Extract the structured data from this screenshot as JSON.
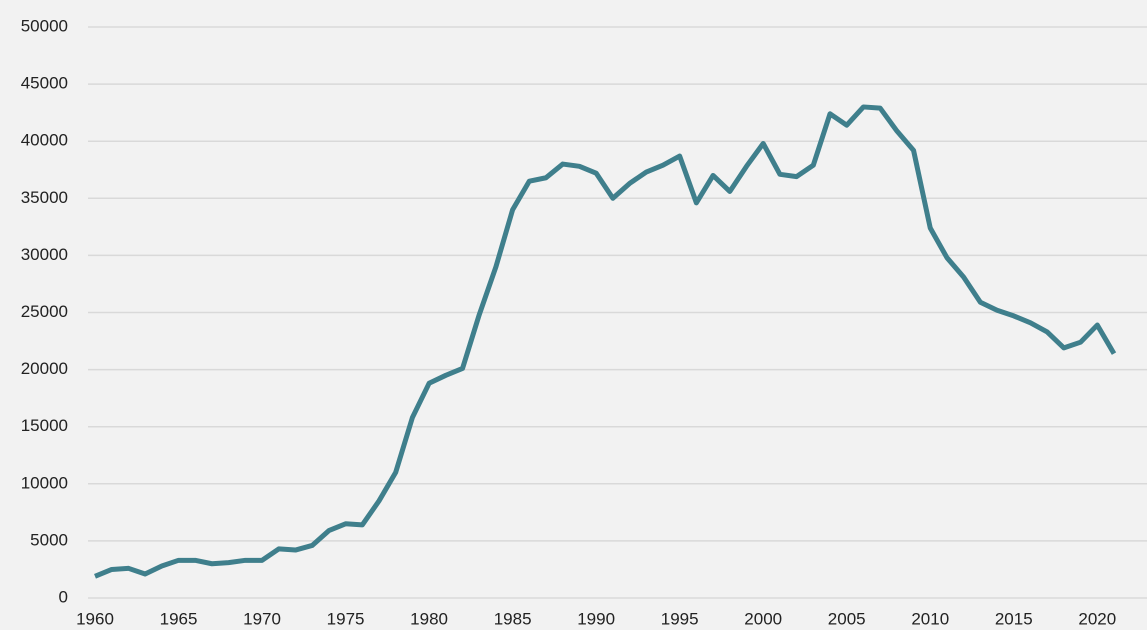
{
  "chart_data": {
    "type": "line",
    "x": [
      1960,
      1961,
      1962,
      1963,
      1964,
      1965,
      1966,
      1967,
      1968,
      1969,
      1970,
      1971,
      1972,
      1973,
      1974,
      1975,
      1976,
      1977,
      1978,
      1979,
      1980,
      1981,
      1982,
      1983,
      1984,
      1985,
      1986,
      1987,
      1988,
      1989,
      1990,
      1991,
      1992,
      1993,
      1994,
      1995,
      1996,
      1997,
      1998,
      1999,
      2000,
      2001,
      2002,
      2003,
      2004,
      2005,
      2006,
      2007,
      2008,
      2009,
      2010,
      2011,
      2012,
      2013,
      2014,
      2015,
      2016,
      2017,
      2018,
      2019,
      2020,
      2021
    ],
    "series": [
      {
        "color": "#3f7f8c",
        "values": [
          1900,
          2500,
          2600,
          2100,
          2800,
          3300,
          3300,
          3000,
          3100,
          3300,
          3300,
          4300,
          4200,
          4600,
          5900,
          6500,
          6400,
          8500,
          11000,
          15800,
          18800,
          19500,
          20100,
          24800,
          29000,
          34000,
          36500,
          36800,
          38000,
          37800,
          37200,
          35000,
          36300,
          37300,
          37900,
          38700,
          34600,
          37000,
          35600,
          37800,
          39800,
          37100,
          36900,
          37900,
          42400,
          41400,
          43000,
          42900,
          40900,
          39200,
          32400,
          29800,
          28100,
          25900,
          25200,
          24700,
          24100,
          23300,
          21900,
          22400,
          23900,
          21400
        ]
      }
    ],
    "xlim": [
      1960,
      2021
    ],
    "xticks": [
      1960,
      1965,
      1970,
      1975,
      1980,
      1985,
      1990,
      1995,
      2000,
      2005,
      2010,
      2015,
      2020
    ],
    "ylim": [
      0,
      50000
    ],
    "yticks": [
      0,
      5000,
      10000,
      15000,
      20000,
      25000,
      30000,
      35000,
      40000,
      45000,
      50000
    ],
    "grid": true
  }
}
